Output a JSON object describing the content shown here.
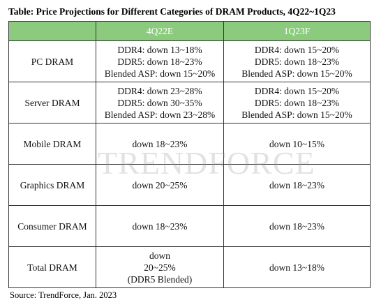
{
  "title": "Table: Price Projections for Different Categories of DRAM Products, 4Q22~1Q23",
  "table": {
    "header": [
      "4Q22E",
      "1Q23F"
    ],
    "rows": [
      {
        "label": "PC DRAM",
        "cells": [
          [
            "DDR4: down 13~18%",
            "DDR5: down 18~23%",
            "Blended ASP: down 15~20%"
          ],
          [
            "DDR4: down 15~20%",
            "DDR5: down 18~23%",
            "Blended ASP: down 15~20%"
          ]
        ]
      },
      {
        "label": "Server DRAM",
        "cells": [
          [
            "DDR4: down 23~28%",
            "DDR5: down 30~35%",
            "Blended ASP: down 23~28%"
          ],
          [
            "DDR4: down 15~20%",
            "DDR5: down 18~23%",
            "Blended ASP: down 15~20%"
          ]
        ]
      },
      {
        "label": "Mobile DRAM",
        "cells": [
          [
            "down 18~23%"
          ],
          [
            "down 10~15%"
          ]
        ]
      },
      {
        "label": "Graphics DRAM",
        "cells": [
          [
            "down 20~25%"
          ],
          [
            "down 18~23%"
          ]
        ]
      },
      {
        "label": "Consumer DRAM",
        "cells": [
          [
            "down 18~23%"
          ],
          [
            "down 18~23%"
          ]
        ]
      },
      {
        "label": "Total DRAM",
        "cells": [
          [
            "down",
            "20~25%",
            "(DDR5 Blended)"
          ],
          [
            "down 13~18%"
          ]
        ]
      }
    ]
  },
  "watermark": "TRENDFORCE",
  "source": "Source: TrendForce, Jan. 2023"
}
